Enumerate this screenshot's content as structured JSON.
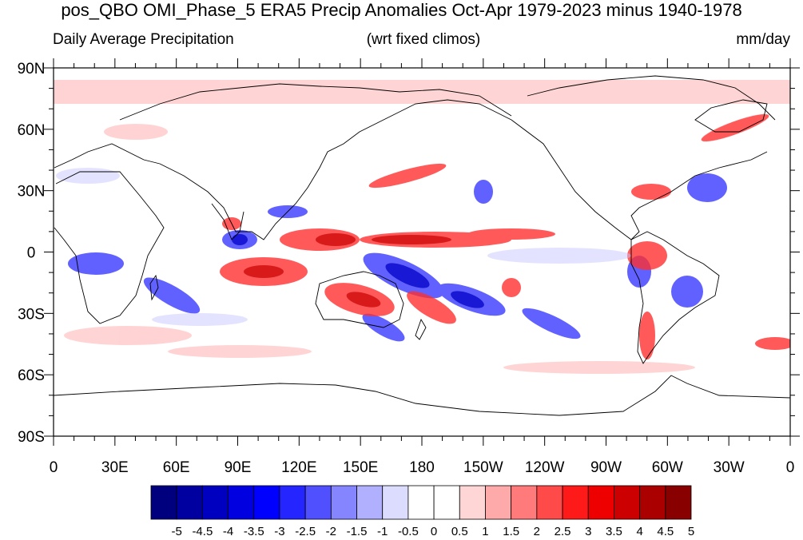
{
  "title": "pos_QBO OMI_Phase_5 ERA5 Precip Anomalies Oct-Apr 1979-2023 minus 1940-1978",
  "subtitle_left": "Daily Average Precipitation",
  "subtitle_center": "(wrt fixed climos)",
  "subtitle_right": "mm/day",
  "lat_labels": [
    "90N",
    "60N",
    "30N",
    "0",
    "30S",
    "60S",
    "90S"
  ],
  "lon_labels": [
    "0",
    "30E",
    "60E",
    "90E",
    "120E",
    "150E",
    "180",
    "150W",
    "120W",
    "90W",
    "60W",
    "30W",
    "0"
  ],
  "colorbar": {
    "labels": [
      "-5",
      "-4.5",
      "-4",
      "-3.5",
      "-3",
      "-2.5",
      "-2",
      "-1.5",
      "-1",
      "-0.5",
      "0",
      "0.5",
      "1",
      "1.5",
      "2",
      "2.5",
      "3",
      "3.5",
      "4",
      "4.5",
      "5"
    ],
    "colors": [
      "#00007f",
      "#0000a0",
      "#0000c0",
      "#0000e0",
      "#0000ff",
      "#2525ff",
      "#5050ff",
      "#8585ff",
      "#b0b0ff",
      "#dcdcff",
      "#ffffff",
      "#ffffff",
      "#ffd6d6",
      "#ffaaaa",
      "#ff7a7a",
      "#ff4a4a",
      "#ff1a1a",
      "#ee0000",
      "#cc0000",
      "#aa0000",
      "#880000"
    ]
  },
  "colors": {
    "land_outline": "#000000",
    "frame": "#000000"
  }
}
